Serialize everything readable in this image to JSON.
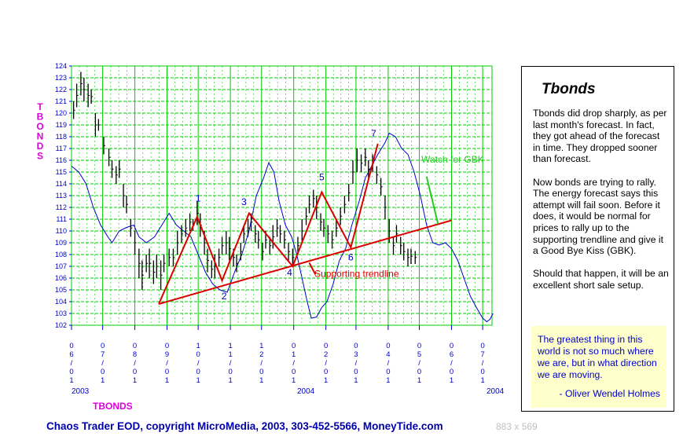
{
  "chart_data": {
    "type": "line",
    "ylabel": "TBONDS",
    "xlabel": "TBONDS",
    "ylim": [
      102,
      124
    ],
    "yticks": [
      102,
      103,
      104,
      105,
      106,
      107,
      108,
      109,
      110,
      111,
      112,
      113,
      114,
      115,
      116,
      117,
      118,
      119,
      120,
      121,
      122,
      123,
      124
    ],
    "x_tick_labels": [
      "06/01",
      "07/01",
      "08/01",
      "09/01",
      "10/01",
      "11/01",
      "12/01",
      "01/01",
      "02/01",
      "03/01",
      "04/01",
      "05/01",
      "06/01",
      "07/01"
    ],
    "year_labels": {
      "start": "2003",
      "middle": "2004",
      "end": "2004"
    },
    "grid": true,
    "series": [
      {
        "type": "ohlc",
        "color": "#000000",
        "bars": [
          {
            "d": "2003-06-03",
            "h": 121,
            "l": 119.5
          },
          {
            "d": "2003-06-06",
            "h": 122.5,
            "l": 120.5
          },
          {
            "d": "2003-06-10",
            "h": 123.5,
            "l": 121.5
          },
          {
            "d": "2003-06-13",
            "h": 123,
            "l": 121
          },
          {
            "d": "2003-06-17",
            "h": 122.5,
            "l": 120.5
          },
          {
            "d": "2003-06-20",
            "h": 122,
            "l": 120.8
          },
          {
            "d": "2003-06-24",
            "h": 120,
            "l": 118
          },
          {
            "d": "2003-06-27",
            "h": 119.5,
            "l": 118.5
          },
          {
            "d": "2003-07-02",
            "h": 118,
            "l": 116.5
          },
          {
            "d": "2003-07-07",
            "h": 117,
            "l": 115.5
          },
          {
            "d": "2003-07-10",
            "h": 116,
            "l": 114.5
          },
          {
            "d": "2003-07-14",
            "h": 115.5,
            "l": 114
          },
          {
            "d": "2003-07-17",
            "h": 116,
            "l": 114.5
          },
          {
            "d": "2003-07-21",
            "h": 114,
            "l": 112
          },
          {
            "d": "2003-07-24",
            "h": 113,
            "l": 111.5
          },
          {
            "d": "2003-07-28",
            "h": 111,
            "l": 109.5
          },
          {
            "d": "2003-08-01",
            "h": 110,
            "l": 108
          },
          {
            "d": "2003-08-05",
            "h": 108.5,
            "l": 106
          },
          {
            "d": "2003-08-08",
            "h": 107.5,
            "l": 105
          },
          {
            "d": "2003-08-12",
            "h": 108,
            "l": 106.5
          },
          {
            "d": "2003-08-15",
            "h": 108.5,
            "l": 106
          },
          {
            "d": "2003-08-19",
            "h": 107.5,
            "l": 105.5
          },
          {
            "d": "2003-08-22",
            "h": 108,
            "l": 106
          },
          {
            "d": "2003-08-26",
            "h": 107.5,
            "l": 105
          },
          {
            "d": "2003-08-29",
            "h": 108,
            "l": 106.5
          },
          {
            "d": "2003-09-03",
            "h": 108.5,
            "l": 107
          },
          {
            "d": "2003-09-07",
            "h": 108.5,
            "l": 107
          },
          {
            "d": "2003-09-11",
            "h": 110,
            "l": 108
          },
          {
            "d": "2003-09-15",
            "h": 110.5,
            "l": 109
          },
          {
            "d": "2003-09-19",
            "h": 111,
            "l": 109.5
          },
          {
            "d": "2003-09-23",
            "h": 111.5,
            "l": 110
          },
          {
            "d": "2003-09-26",
            "h": 111,
            "l": 110
          },
          {
            "d": "2003-09-30",
            "h": 112.5,
            "l": 110.5
          },
          {
            "d": "2003-10-03",
            "h": 111.5,
            "l": 109.5
          },
          {
            "d": "2003-10-07",
            "h": 110,
            "l": 108
          },
          {
            "d": "2003-10-10",
            "h": 108.5,
            "l": 106.5
          },
          {
            "d": "2003-10-14",
            "h": 107.5,
            "l": 106
          },
          {
            "d": "2003-10-17",
            "h": 108,
            "l": 106
          },
          {
            "d": "2003-10-21",
            "h": 108.5,
            "l": 107
          },
          {
            "d": "2003-10-24",
            "h": 109.5,
            "l": 108
          },
          {
            "d": "2003-10-28",
            "h": 110,
            "l": 108
          },
          {
            "d": "2003-10-31",
            "h": 109.5,
            "l": 107.5
          },
          {
            "d": "2003-11-04",
            "h": 108.5,
            "l": 107
          },
          {
            "d": "2003-11-07",
            "h": 108,
            "l": 106.5
          },
          {
            "d": "2003-11-11",
            "h": 109,
            "l": 107.5
          },
          {
            "d": "2003-11-14",
            "h": 110.5,
            "l": 109
          },
          {
            "d": "2003-11-18",
            "h": 111,
            "l": 109.5
          },
          {
            "d": "2003-11-21",
            "h": 111.5,
            "l": 110
          },
          {
            "d": "2003-11-25",
            "h": 110.5,
            "l": 109
          },
          {
            "d": "2003-11-28",
            "h": 110,
            "l": 108.5
          },
          {
            "d": "2003-12-02",
            "h": 109,
            "l": 107.5
          },
          {
            "d": "2003-12-05",
            "h": 110,
            "l": 108.5
          },
          {
            "d": "2003-12-09",
            "h": 109.5,
            "l": 108
          },
          {
            "d": "2003-12-12",
            "h": 110.5,
            "l": 108.5
          },
          {
            "d": "2003-12-16",
            "h": 111,
            "l": 109.5
          },
          {
            "d": "2003-12-19",
            "h": 110.5,
            "l": 109
          },
          {
            "d": "2003-12-23",
            "h": 110,
            "l": 108.5
          },
          {
            "d": "2003-12-27",
            "h": 109,
            "l": 107.5
          },
          {
            "d": "2003-12-31",
            "h": 108.5,
            "l": 107
          },
          {
            "d": "2004-01-05",
            "h": 109.5,
            "l": 108
          },
          {
            "d": "2004-01-09",
            "h": 111,
            "l": 109
          },
          {
            "d": "2004-01-13",
            "h": 112,
            "l": 110.5
          },
          {
            "d": "2004-01-16",
            "h": 113,
            "l": 111.5
          },
          {
            "d": "2004-01-20",
            "h": 113.5,
            "l": 112
          },
          {
            "d": "2004-01-23",
            "h": 113,
            "l": 111
          },
          {
            "d": "2004-01-27",
            "h": 111.5,
            "l": 110
          },
          {
            "d": "2004-01-30",
            "h": 111,
            "l": 109.5
          },
          {
            "d": "2004-02-03",
            "h": 110.5,
            "l": 109
          },
          {
            "d": "2004-02-07",
            "h": 110,
            "l": 108.5
          },
          {
            "d": "2004-02-11",
            "h": 111,
            "l": 109.5
          },
          {
            "d": "2004-02-15",
            "h": 112,
            "l": 110.5
          },
          {
            "d": "2004-02-19",
            "h": 113,
            "l": 111.5
          },
          {
            "d": "2004-02-23",
            "h": 114,
            "l": 112.5
          },
          {
            "d": "2004-02-27",
            "h": 116,
            "l": 114
          },
          {
            "d": "2004-03-02",
            "h": 117,
            "l": 115
          },
          {
            "d": "2004-03-06",
            "h": 116.5,
            "l": 115
          },
          {
            "d": "2004-03-10",
            "h": 117,
            "l": 115.5
          },
          {
            "d": "2004-03-13",
            "h": 116,
            "l": 114.5
          },
          {
            "d": "2004-03-17",
            "h": 116.5,
            "l": 115
          },
          {
            "d": "2004-03-21",
            "h": 115.5,
            "l": 114
          },
          {
            "d": "2004-03-25",
            "h": 114.5,
            "l": 113
          },
          {
            "d": "2004-03-29",
            "h": 113,
            "l": 111
          },
          {
            "d": "2004-04-02",
            "h": 111,
            "l": 109
          },
          {
            "d": "2004-04-06",
            "h": 109.5,
            "l": 108
          },
          {
            "d": "2004-04-09",
            "h": 110.5,
            "l": 109
          },
          {
            "d": "2004-04-13",
            "h": 109.5,
            "l": 108
          },
          {
            "d": "2004-04-16",
            "h": 109,
            "l": 107.5
          },
          {
            "d": "2004-04-20",
            "h": 108.5,
            "l": 107
          },
          {
            "d": "2004-04-23",
            "h": 108.5,
            "l": 107.2
          },
          {
            "d": "2004-04-27",
            "h": 108.3,
            "l": 107.2
          }
        ]
      },
      {
        "type": "line",
        "color": "#0000cc",
        "points": [
          {
            "d": "2003-06-01",
            "y": 115.5
          },
          {
            "d": "2003-06-08",
            "y": 115
          },
          {
            "d": "2003-06-15",
            "y": 114
          },
          {
            "d": "2003-06-22",
            "y": 112
          },
          {
            "d": "2003-06-29",
            "y": 110.5
          },
          {
            "d": "2003-07-06",
            "y": 109.5
          },
          {
            "d": "2003-07-10",
            "y": 109
          },
          {
            "d": "2003-07-17",
            "y": 110
          },
          {
            "d": "2003-07-24",
            "y": 110.3
          },
          {
            "d": "2003-07-31",
            "y": 110.5
          },
          {
            "d": "2003-08-05",
            "y": 109.5
          },
          {
            "d": "2003-08-12",
            "y": 109
          },
          {
            "d": "2003-08-20",
            "y": 109.5
          },
          {
            "d": "2003-08-27",
            "y": 110.5
          },
          {
            "d": "2003-09-03",
            "y": 111.5
          },
          {
            "d": "2003-09-10",
            "y": 110.5
          },
          {
            "d": "2003-09-17",
            "y": 110
          },
          {
            "d": "2003-09-24",
            "y": 109.5
          },
          {
            "d": "2003-10-01",
            "y": 108
          },
          {
            "d": "2003-10-08",
            "y": 106.5
          },
          {
            "d": "2003-10-15",
            "y": 105.5
          },
          {
            "d": "2003-10-22",
            "y": 105
          },
          {
            "d": "2003-10-29",
            "y": 104.8
          },
          {
            "d": "2003-11-05",
            "y": 106.5
          },
          {
            "d": "2003-11-12",
            "y": 108
          },
          {
            "d": "2003-11-19",
            "y": 110
          },
          {
            "d": "2003-11-26",
            "y": 113
          },
          {
            "d": "2003-12-03",
            "y": 114.5
          },
          {
            "d": "2003-12-08",
            "y": 115.8
          },
          {
            "d": "2003-12-13",
            "y": 115
          },
          {
            "d": "2003-12-18",
            "y": 112.5
          },
          {
            "d": "2003-12-24",
            "y": 110.5
          },
          {
            "d": "2003-12-30",
            "y": 109.5
          },
          {
            "d": "2004-01-04",
            "y": 108
          },
          {
            "d": "2004-01-09",
            "y": 106
          },
          {
            "d": "2004-01-14",
            "y": 104
          },
          {
            "d": "2004-01-18",
            "y": 102.6
          },
          {
            "d": "2004-01-23",
            "y": 102.7
          },
          {
            "d": "2004-01-28",
            "y": 103.5
          },
          {
            "d": "2004-02-02",
            "y": 104
          },
          {
            "d": "2004-02-08",
            "y": 105.5
          },
          {
            "d": "2004-02-14",
            "y": 107.5
          },
          {
            "d": "2004-02-20",
            "y": 108.5
          },
          {
            "d": "2004-02-26",
            "y": 110.5
          },
          {
            "d": "2004-03-04",
            "y": 112.5
          },
          {
            "d": "2004-03-10",
            "y": 114.5
          },
          {
            "d": "2004-03-16",
            "y": 115.5
          },
          {
            "d": "2004-03-22",
            "y": 116.5
          },
          {
            "d": "2004-03-29",
            "y": 117.5
          },
          {
            "d": "2004-04-02",
            "y": 118.3
          },
          {
            "d": "2004-04-08",
            "y": 118
          },
          {
            "d": "2004-04-14",
            "y": 117
          },
          {
            "d": "2004-04-20",
            "y": 116.5
          },
          {
            "d": "2004-04-26",
            "y": 115
          },
          {
            "d": "2004-05-02",
            "y": 113
          },
          {
            "d": "2004-05-08",
            "y": 110.5
          },
          {
            "d": "2004-05-14",
            "y": 109
          },
          {
            "d": "2004-05-20",
            "y": 108.8
          },
          {
            "d": "2004-05-26",
            "y": 109
          },
          {
            "d": "2004-06-01",
            "y": 108.5
          },
          {
            "d": "2004-06-07",
            "y": 107.5
          },
          {
            "d": "2004-06-13",
            "y": 106
          },
          {
            "d": "2004-06-19",
            "y": 104.5
          },
          {
            "d": "2004-06-25",
            "y": 103.5
          },
          {
            "d": "2004-07-01",
            "y": 102.6
          },
          {
            "d": "2004-07-05",
            "y": 102.3
          },
          {
            "d": "2004-07-08",
            "y": 102.5
          },
          {
            "d": "2004-07-11",
            "y": 103
          }
        ]
      }
    ],
    "wave_path": {
      "color": "#dd0000",
      "points": [
        {
          "d": "2003-08-24",
          "y": 103.8
        },
        {
          "d": "2003-09-30",
          "y": 111.2
        },
        {
          "d": "2003-10-24",
          "y": 105.8
        },
        {
          "d": "2003-11-19",
          "y": 111.5
        },
        {
          "d": "2003-12-31",
          "y": 107
        },
        {
          "d": "2004-01-28",
          "y": 113.3
        },
        {
          "d": "2004-02-25",
          "y": 108.6
        },
        {
          "d": "2004-03-22",
          "y": 117.4
        }
      ]
    },
    "trendline": {
      "color": "#dd0000",
      "start": {
        "d": "2003-08-24",
        "y": 103.8
      },
      "end": {
        "d": "2004-06-01",
        "y": 110.9
      }
    },
    "wave_labels": [
      {
        "text": "1",
        "d": "2003-10-01",
        "y": 112.5
      },
      {
        "text": "2",
        "d": "2003-10-26",
        "y": 104.2
      },
      {
        "text": "3",
        "d": "2003-11-14",
        "y": 112.2
      },
      {
        "text": "4",
        "d": "2003-12-28",
        "y": 106.2
      },
      {
        "text": "5",
        "d": "2004-01-28",
        "y": 114.3
      },
      {
        "text": "6",
        "d": "2004-02-25",
        "y": 107.5
      },
      {
        "text": "7",
        "d": "2004-03-18",
        "y": 118
      }
    ],
    "annotations": [
      {
        "text": "Supporting trendline",
        "color": "#dd0000",
        "d": "2004-01-21",
        "y": 106.1,
        "arrow_from": {
          "d": "2004-01-22",
          "y": 106.3
        },
        "arrow_to": {
          "d": "2004-01-16",
          "y": 107.3
        }
      },
      {
        "text": "Watch for GBK",
        "color": "#22cc22",
        "d": "2004-05-03",
        "y": 115.8,
        "arrow_from": {
          "d": "2004-05-08",
          "y": 114.6
        },
        "arrow_to": {
          "d": "2004-05-19",
          "y": 110.6
        }
      }
    ]
  },
  "panel": {
    "title": "Tbonds",
    "paragraphs": [
      "Tbonds did drop sharply, as per last month's forecast. In fact, they got ahead of the forecast in time. They dropped sooner than forecast.",
      "Now bonds are trying to rally. The energy forecast says this attempt will fail soon. Before it does, it would be normal for prices to rally up to the supporting trendline and give it a Good Bye Kiss (GBK).",
      "Should that happen, it will be an excellent short sale setup."
    ],
    "quote": "The greatest thing in this world is not so much where we are, but in what direction we are moving.",
    "quote_author": "- Oliver Wendel Holmes"
  },
  "footer": {
    "copyright": "Chaos Trader EOD, copyright MicroMedia, 2003, 303-452-5566, MoneyTide.com",
    "image_size": "883 x 569"
  },
  "colors": {
    "grid": "#00cc00",
    "axis_text": "#0000cc",
    "label_magenta": "#dd00dd",
    "price_bars": "#000000",
    "forecast": "#0000cc",
    "wave": "#dd0000"
  }
}
